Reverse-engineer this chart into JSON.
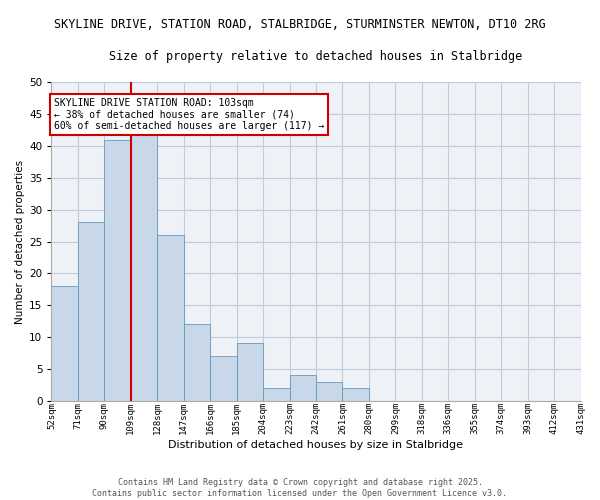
{
  "title_line1": "SKYLINE DRIVE, STATION ROAD, STALBRIDGE, STURMINSTER NEWTON, DT10 2RG",
  "title_line2": "Size of property relative to detached houses in Stalbridge",
  "xlabel": "Distribution of detached houses by size in Stalbridge",
  "ylabel": "Number of detached properties",
  "bar_values": [
    18,
    28,
    41,
    42,
    26,
    12,
    7,
    9,
    2,
    4,
    3,
    2,
    0,
    0,
    0,
    0,
    0,
    0,
    0,
    0
  ],
  "categories": [
    "52sqm",
    "71sqm",
    "90sqm",
    "109sqm",
    "128sqm",
    "147sqm",
    "166sqm",
    "185sqm",
    "204sqm",
    "223sqm",
    "242sqm",
    "261sqm",
    "280sqm",
    "299sqm",
    "318sqm",
    "336sqm",
    "355sqm",
    "374sqm",
    "393sqm",
    "412sqm",
    "431sqm"
  ],
  "bar_color": "#c8d8e8",
  "bar_edge_color": "#6699bb",
  "vline_x": 3,
  "vline_color": "#cc0000",
  "annotation_text": "SKYLINE DRIVE STATION ROAD: 103sqm\n← 38% of detached houses are smaller (74)\n60% of semi-detached houses are larger (117) →",
  "annotation_box_color": "#cc0000",
  "ylim": [
    0,
    50
  ],
  "yticks": [
    0,
    5,
    10,
    15,
    20,
    25,
    30,
    35,
    40,
    45,
    50
  ],
  "grid_color": "#c0ccdd",
  "footer_text": "Contains HM Land Registry data © Crown copyright and database right 2025.\nContains public sector information licensed under the Open Government Licence v3.0.",
  "bg_color": "#eef2f7"
}
